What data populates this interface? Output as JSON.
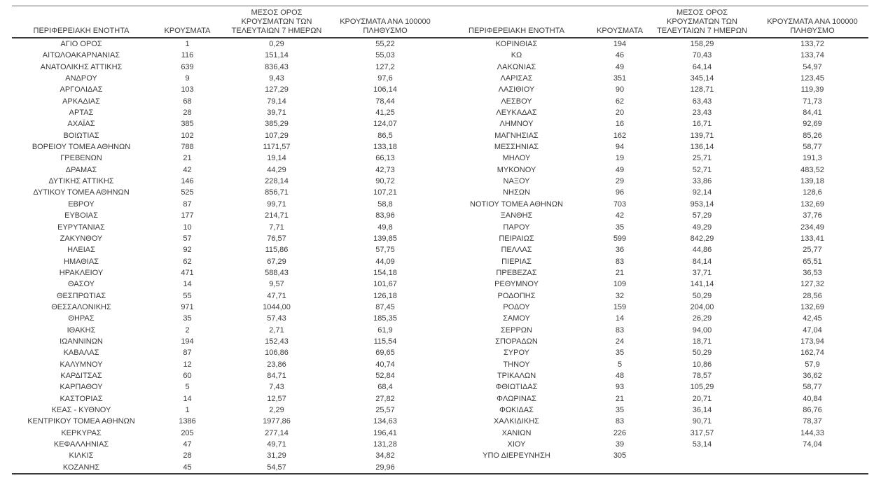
{
  "table": {
    "columns": {
      "region": "ΠΕΡΙΦΕΡΕΙΑΚΗ ΕΝΟΤΗΤΑ",
      "cases": "ΚΡΟΥΣΜΑΤΑ",
      "avg7_lines": [
        "ΜΕΣΟΣ ΟΡΟΣ",
        "ΚΡΟΥΣΜΑΤΩΝ ΤΩΝ",
        "ΤΕΛΕΥΤΑΙΩΝ 7 ΗΜΕΡΩΝ"
      ],
      "per100k_lines": [
        "ΚΡΟΥΣΜΑΤΑ ΑΝΑ 100000",
        "ΠΛΗΘΥΣΜΟ"
      ]
    },
    "left_rows": [
      [
        "ΑΓΙΟ ΟΡΟΣ",
        "1",
        "0,29",
        "55,22"
      ],
      [
        "ΑΙΤΩΛΟΑΚΑΡΝΑΝΙΑΣ",
        "116",
        "151,14",
        "55,03"
      ],
      [
        "ΑΝΑΤΟΛΙΚΗΣ ΑΤΤΙΚΗΣ",
        "639",
        "836,43",
        "127,2"
      ],
      [
        "ΑΝΔΡΟΥ",
        "9",
        "9,43",
        "97,6"
      ],
      [
        "ΑΡΓΟΛΙΔΑΣ",
        "103",
        "127,29",
        "106,14"
      ],
      [
        "ΑΡΚΑΔΙΑΣ",
        "68",
        "79,14",
        "78,44"
      ],
      [
        "ΑΡΤΑΣ",
        "28",
        "39,71",
        "41,25"
      ],
      [
        "ΑΧΑΪΑΣ",
        "385",
        "385,29",
        "124,07"
      ],
      [
        "ΒΟΙΩΤΙΑΣ",
        "102",
        "107,29",
        "86,5"
      ],
      [
        "ΒΟΡΕΙΟΥ ΤΟΜΕΑ ΑΘΗΝΩΝ",
        "788",
        "1171,57",
        "133,18"
      ],
      [
        "ΓΡΕΒΕΝΩΝ",
        "21",
        "19,14",
        "66,13"
      ],
      [
        "ΔΡΑΜΑΣ",
        "42",
        "44,29",
        "42,73"
      ],
      [
        "ΔΥΤΙΚΗΣ ΑΤΤΙΚΗΣ",
        "146",
        "228,14",
        "90,72"
      ],
      [
        "ΔΥΤΙΚΟΥ ΤΟΜΕΑ ΑΘΗΝΩΝ",
        "525",
        "856,71",
        "107,21"
      ],
      [
        "ΕΒΡΟΥ",
        "87",
        "99,71",
        "58,8"
      ],
      [
        "ΕΥΒΟΙΑΣ",
        "177",
        "214,71",
        "83,96"
      ],
      [
        "ΕΥΡΥΤΑΝΙΑΣ",
        "10",
        "7,71",
        "49,8"
      ],
      [
        "ΖΑΚΥΝΘΟΥ",
        "57",
        "76,57",
        "139,85"
      ],
      [
        "ΗΛΕΙΑΣ",
        "92",
        "115,86",
        "57,75"
      ],
      [
        "ΗΜΑΘΙΑΣ",
        "62",
        "67,29",
        "44,09"
      ],
      [
        "ΗΡΑΚΛΕΙΟΥ",
        "471",
        "588,43",
        "154,18"
      ],
      [
        "ΘΑΣΟΥ",
        "14",
        "9,57",
        "101,67"
      ],
      [
        "ΘΕΣΠΡΩΤΙΑΣ",
        "55",
        "47,71",
        "126,18"
      ],
      [
        "ΘΕΣΣΑΛΟΝΙΚΗΣ",
        "971",
        "1044,00",
        "87,45"
      ],
      [
        "ΘΗΡΑΣ",
        "35",
        "57,43",
        "185,35"
      ],
      [
        "ΙΘΑΚΗΣ",
        "2",
        "2,71",
        "61,9"
      ],
      [
        "ΙΩΑΝΝΙΝΩΝ",
        "194",
        "152,43",
        "115,54"
      ],
      [
        "ΚΑΒΑΛΑΣ",
        "87",
        "106,86",
        "69,65"
      ],
      [
        "ΚΑΛΥΜΝΟΥ",
        "12",
        "23,86",
        "40,74"
      ],
      [
        "ΚΑΡΔΙΤΣΑΣ",
        "60",
        "84,71",
        "52,84"
      ],
      [
        "ΚΑΡΠΑΘΟΥ",
        "5",
        "7,43",
        "68,4"
      ],
      [
        "ΚΑΣΤΟΡΙΑΣ",
        "14",
        "12,57",
        "27,82"
      ],
      [
        "ΚΕΑΣ - ΚΥΘΝΟΥ",
        "1",
        "2,29",
        "25,57"
      ],
      [
        "ΚΕΝΤΡΙΚΟΥ ΤΟΜΕΑ ΑΘΗΝΩΝ",
        "1386",
        "1977,86",
        "134,63"
      ],
      [
        "ΚΕΡΚΥΡΑΣ",
        "205",
        "277,14",
        "196,41"
      ],
      [
        "ΚΕΦΑΛΛΗΝΙΑΣ",
        "47",
        "49,71",
        "131,28"
      ],
      [
        "ΚΙΛΚΙΣ",
        "28",
        "31,29",
        "34,82"
      ],
      [
        "ΚΟΖΑΝΗΣ",
        "45",
        "54,57",
        "29,96"
      ]
    ],
    "right_rows": [
      [
        "ΚΟΡΙΝΘΙΑΣ",
        "194",
        "158,29",
        "133,72"
      ],
      [
        "ΚΩ",
        "46",
        "70,43",
        "133,74"
      ],
      [
        "ΛΑΚΩΝΙΑΣ",
        "49",
        "64,14",
        "54,97"
      ],
      [
        "ΛΑΡΙΣΑΣ",
        "351",
        "345,14",
        "123,45"
      ],
      [
        "ΛΑΣΙΘΙΟΥ",
        "90",
        "128,71",
        "119,39"
      ],
      [
        "ΛΕΣΒΟΥ",
        "62",
        "63,43",
        "71,73"
      ],
      [
        "ΛΕΥΚΑΔΑΣ",
        "20",
        "23,43",
        "84,41"
      ],
      [
        "ΛΗΜΝΟΥ",
        "16",
        "16,71",
        "92,69"
      ],
      [
        "ΜΑΓΝΗΣΙΑΣ",
        "162",
        "139,71",
        "85,26"
      ],
      [
        "ΜΕΣΣΗΝΙΑΣ",
        "94",
        "136,14",
        "58,77"
      ],
      [
        "ΜΗΛΟΥ",
        "19",
        "25,71",
        "191,3"
      ],
      [
        "ΜΥΚΟΝΟΥ",
        "49",
        "52,71",
        "483,52"
      ],
      [
        "ΝΑΞΟΥ",
        "29",
        "33,86",
        "139,18"
      ],
      [
        "ΝΗΣΩΝ",
        "96",
        "92,14",
        "128,6"
      ],
      [
        "ΝΟΤΙΟΥ ΤΟΜΕΑ ΑΘΗΝΩΝ",
        "703",
        "953,14",
        "132,69"
      ],
      [
        "ΞΑΝΘΗΣ",
        "42",
        "57,29",
        "37,76"
      ],
      [
        "ΠΑΡΟΥ",
        "35",
        "49,29",
        "234,49"
      ],
      [
        "ΠΕΙΡΑΙΩΣ",
        "599",
        "842,29",
        "133,41"
      ],
      [
        "ΠΕΛΛΑΣ",
        "36",
        "44,86",
        "25,77"
      ],
      [
        "ΠΙΕΡΙΑΣ",
        "83",
        "84,14",
        "65,51"
      ],
      [
        "ΠΡΕΒΕΖΑΣ",
        "21",
        "37,71",
        "36,53"
      ],
      [
        "ΡΕΘΥΜΝΟΥ",
        "109",
        "141,14",
        "127,32"
      ],
      [
        "ΡΟΔΟΠΗΣ",
        "32",
        "50,29",
        "28,56"
      ],
      [
        "ΡΟΔΟΥ",
        "159",
        "204,00",
        "132,69"
      ],
      [
        "ΣΑΜΟΥ",
        "14",
        "26,29",
        "42,45"
      ],
      [
        "ΣΕΡΡΩΝ",
        "83",
        "94,00",
        "47,04"
      ],
      [
        "ΣΠΟΡΑΔΩΝ",
        "24",
        "18,71",
        "173,94"
      ],
      [
        "ΣΥΡΟΥ",
        "35",
        "50,29",
        "162,74"
      ],
      [
        "ΤΗΝΟΥ",
        "5",
        "10,86",
        "57,9"
      ],
      [
        "ΤΡΙΚΑΛΩΝ",
        "48",
        "78,57",
        "36,62"
      ],
      [
        "ΦΘΙΩΤΙΔΑΣ",
        "93",
        "105,29",
        "58,77"
      ],
      [
        "ΦΛΩΡΙΝΑΣ",
        "21",
        "20,71",
        "40,84"
      ],
      [
        "ΦΩΚΙΔΑΣ",
        "35",
        "36,14",
        "86,76"
      ],
      [
        "ΧΑΛΚΙΔΙΚΗΣ",
        "83",
        "90,71",
        "78,37"
      ],
      [
        "ΧΑΝΙΩΝ",
        "226",
        "317,57",
        "144,33"
      ],
      [
        "ΧΙΟΥ",
        "39",
        "53,14",
        "74,04"
      ],
      [
        "ΥΠΟ ΔΙΕΡΕΥΝΗΣΗ",
        "305",
        "",
        ""
      ]
    ]
  }
}
